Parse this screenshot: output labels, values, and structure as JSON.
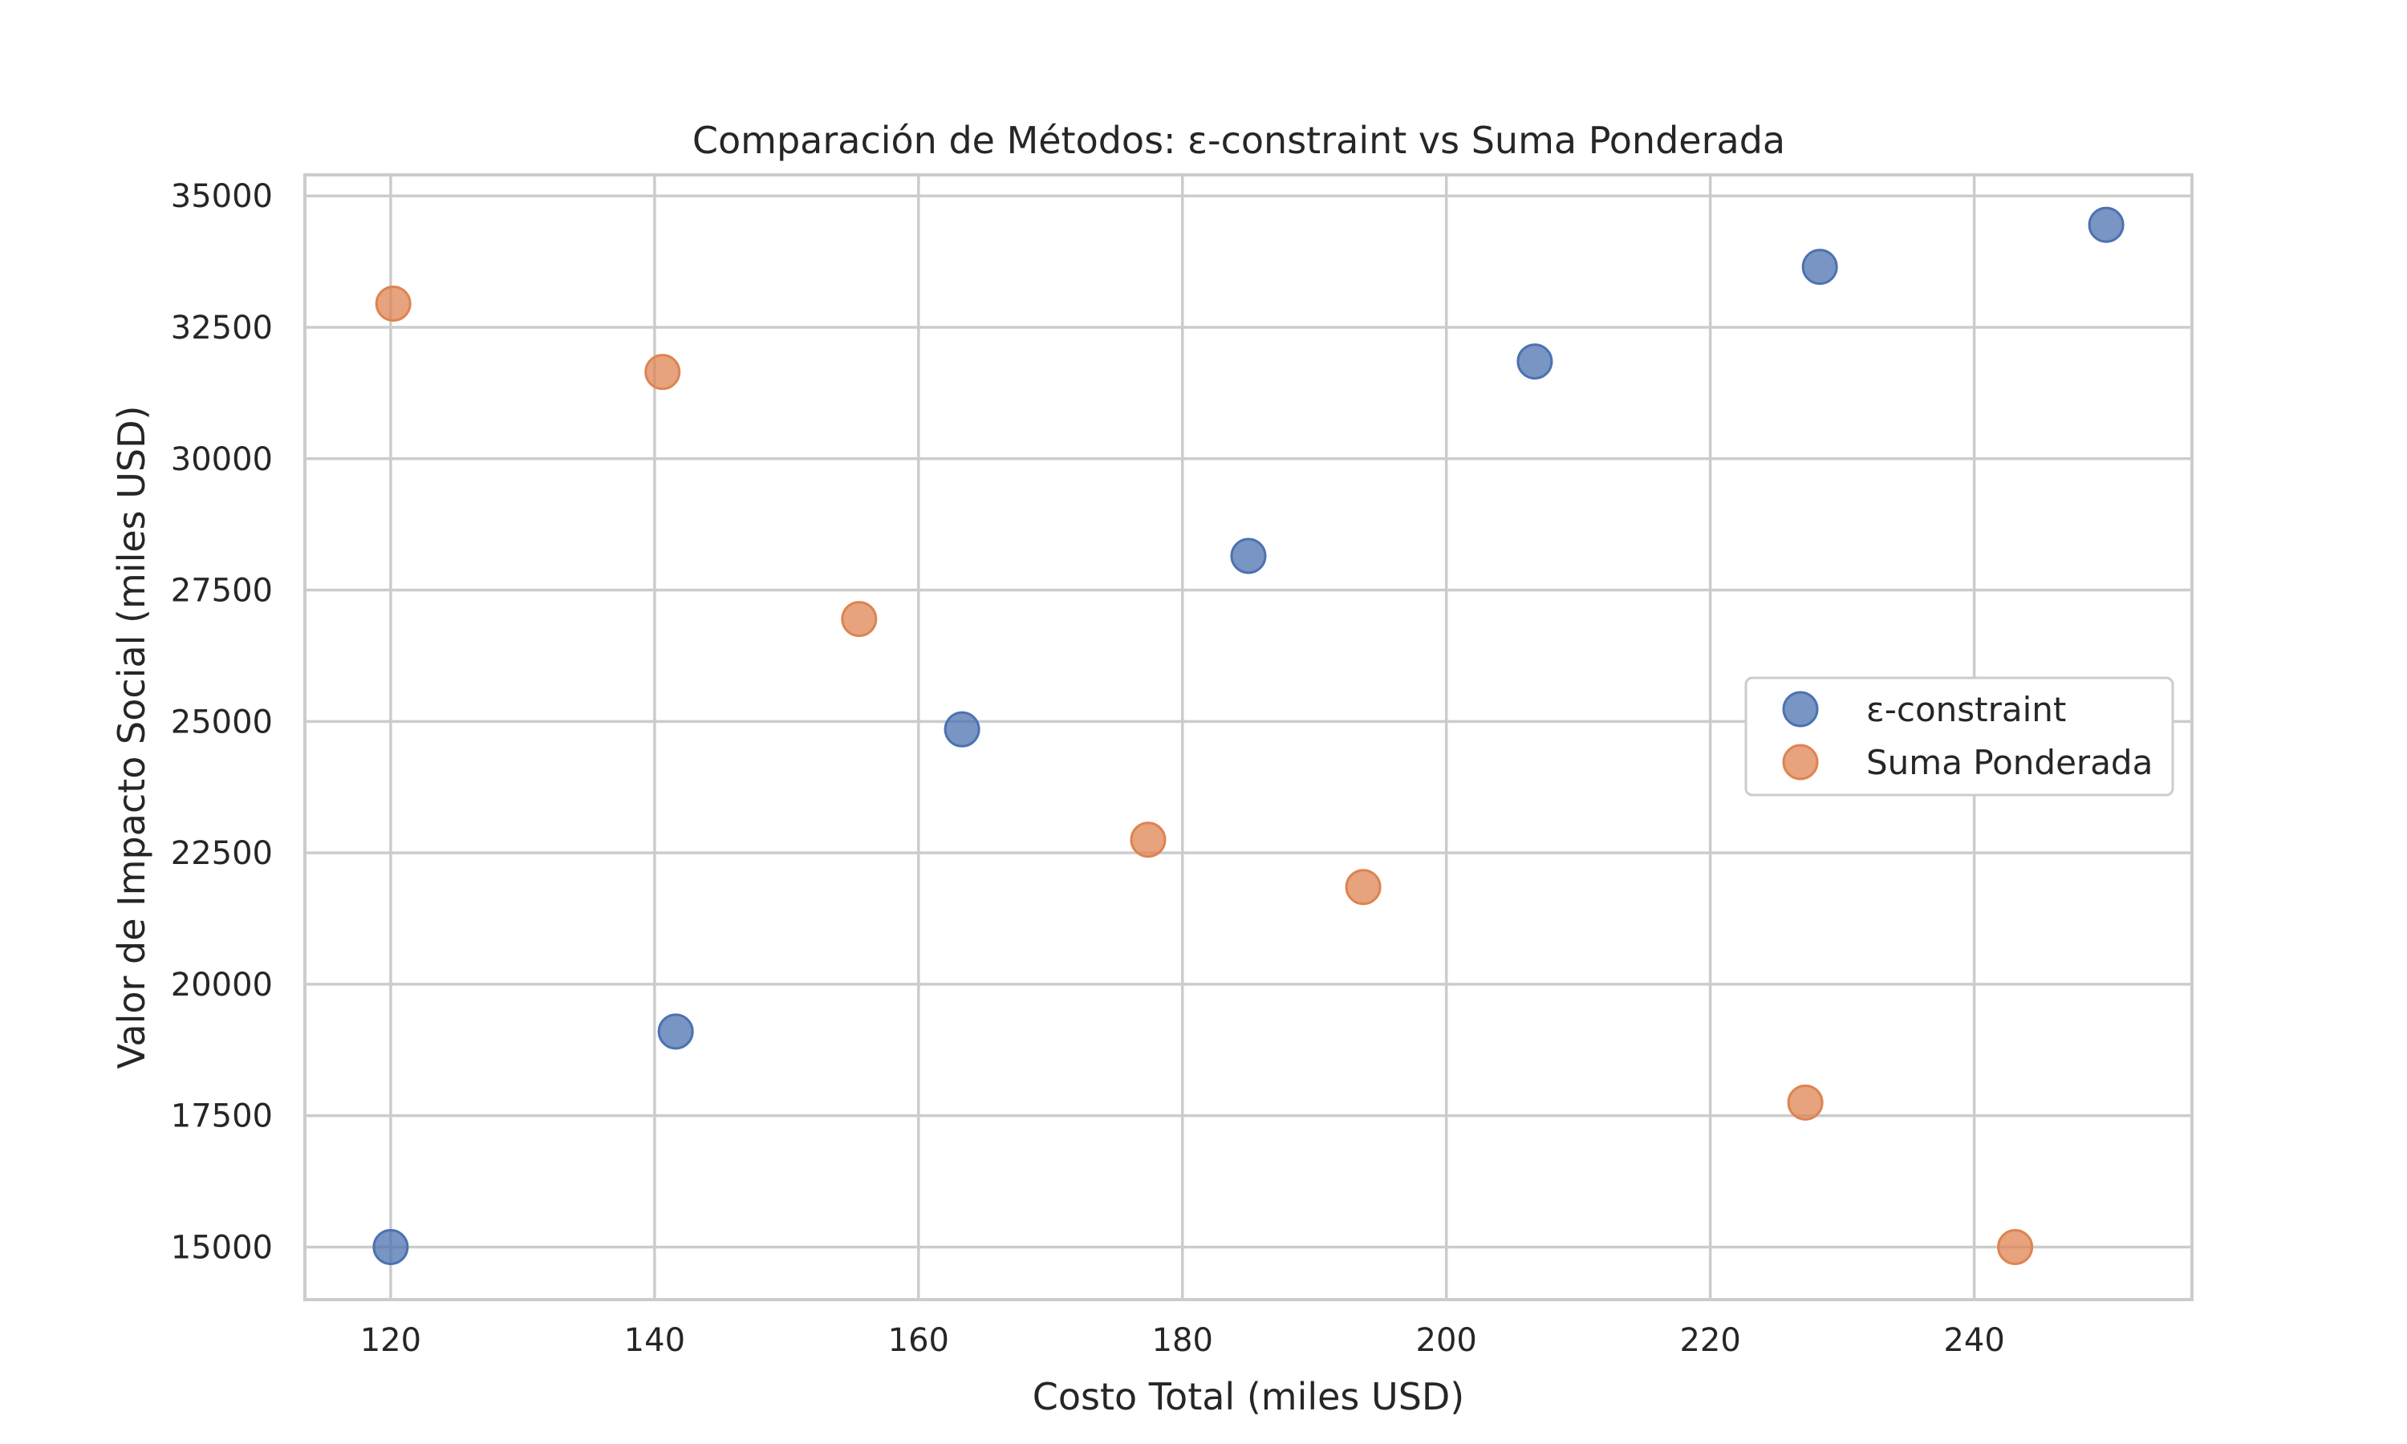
{
  "chart_data": {
    "type": "scatter",
    "title": "Comparación de Métodos: ε-constraint vs Suma Ponderada",
    "xlabel": "Costo Total (miles USD)",
    "ylabel": "Valor de Impacto Social (miles USD)",
    "xlim": [
      113.5,
      256.5
    ],
    "ylim": [
      14000,
      35400
    ],
    "x_ticks": [
      120,
      140,
      160,
      180,
      200,
      220,
      240
    ],
    "y_ticks": [
      15000,
      17500,
      20000,
      22500,
      25000,
      27500,
      30000,
      32500,
      35000
    ],
    "grid": true,
    "legend_position": "center-right",
    "series": [
      {
        "name": "ε-constraint",
        "color": "#4c72b0",
        "points": [
          {
            "x": 120,
            "y": 15000
          },
          {
            "x": 141.6,
            "y": 19100
          },
          {
            "x": 163.3,
            "y": 24850
          },
          {
            "x": 185,
            "y": 28150
          },
          {
            "x": 206.7,
            "y": 31850
          },
          {
            "x": 228.3,
            "y": 33650
          },
          {
            "x": 250,
            "y": 34450
          }
        ]
      },
      {
        "name": "Suma Ponderada",
        "color": "#dd8452",
        "points": [
          {
            "x": 120.2,
            "y": 32950
          },
          {
            "x": 140.6,
            "y": 31650
          },
          {
            "x": 155.5,
            "y": 26950
          },
          {
            "x": 177.4,
            "y": 22750
          },
          {
            "x": 193.7,
            "y": 21850
          },
          {
            "x": 227.2,
            "y": 17750
          },
          {
            "x": 243.1,
            "y": 15000
          }
        ]
      }
    ]
  }
}
